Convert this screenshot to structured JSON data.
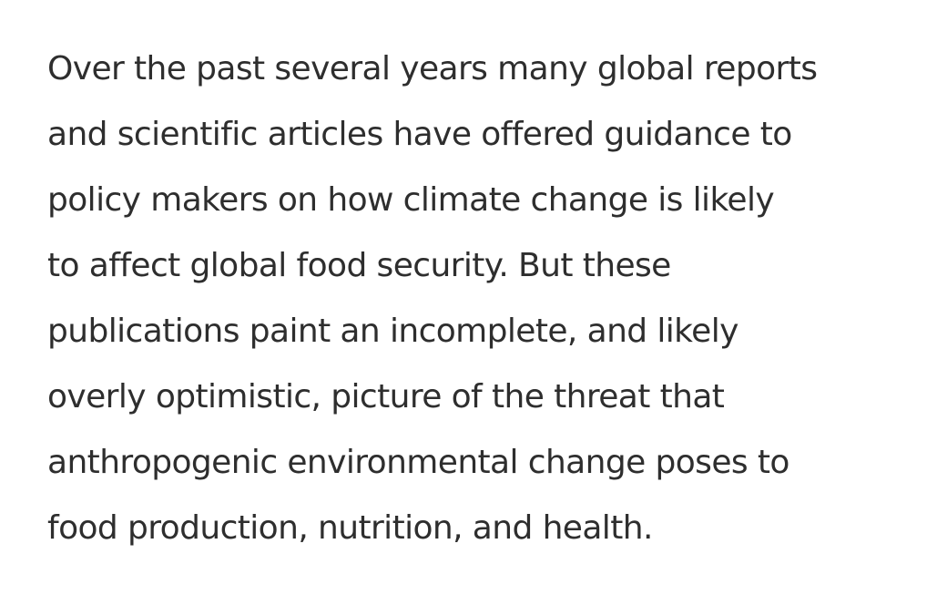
{
  "paragraph": {
    "lines": [
      "Over the past several years many global reports",
      "and scientific articles have offered guidance to",
      "policy makers on how climate change is likely",
      "to affect global food security. But these",
      "publications paint an incomplete, and likely",
      "overly optimistic, picture of the threat that",
      "anthropogenic environmental change poses to",
      "food production, nutrition, and health."
    ]
  }
}
